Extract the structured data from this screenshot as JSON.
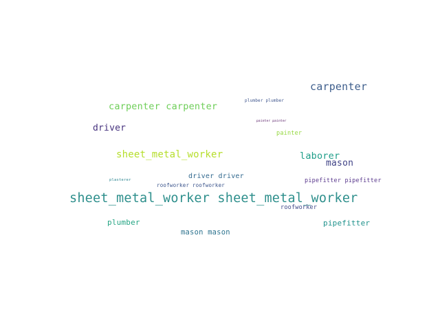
{
  "words": [
    {
      "text": "carpenter",
      "color": "#3e5e8c"
    },
    {
      "text": "carpenter carpenter",
      "color": "#6ece58"
    },
    {
      "text": "plumber plumber",
      "color": "#3b528b"
    },
    {
      "text": "driver",
      "color": "#46327e"
    },
    {
      "text": "painter painter",
      "color": "#440154"
    },
    {
      "text": "painter",
      "color": "#95d840"
    },
    {
      "text": "sheet_metal_worker",
      "color": "#b5de2b"
    },
    {
      "text": "laborer",
      "color": "#1f9e89"
    },
    {
      "text": "mason",
      "color": "#414487"
    },
    {
      "text": "driver driver",
      "color": "#31688e"
    },
    {
      "text": "plasterer",
      "color": "#26828e"
    },
    {
      "text": "roofworker roofworker",
      "color": "#3a538b"
    },
    {
      "text": "pipefitter pipefitter",
      "color": "#5b3a8e"
    },
    {
      "text": "sheet_metal_worker sheet_metal_worker",
      "color": "#2e8f8c"
    },
    {
      "text": "roofworker",
      "color": "#3f4788"
    },
    {
      "text": "plumber",
      "color": "#25a584"
    },
    {
      "text": "pipefitter",
      "color": "#20928c"
    },
    {
      "text": "mason mason",
      "color": "#2c728e"
    }
  ]
}
